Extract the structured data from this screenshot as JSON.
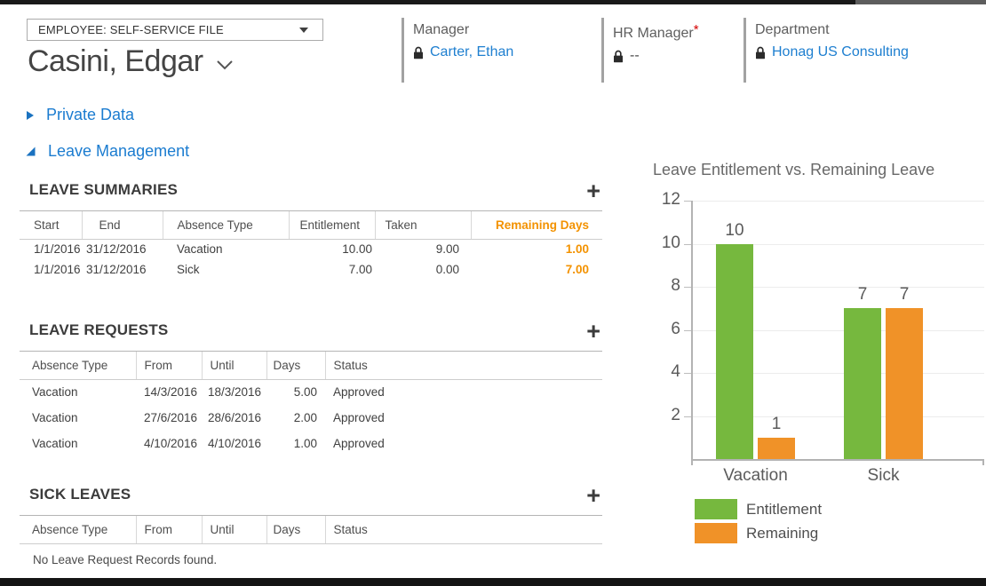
{
  "header": {
    "context_selector": "EMPLOYEE: SELF-SERVICE FILE",
    "employee_name": "Casini, Edgar",
    "fields": [
      {
        "label": "Manager",
        "value": "Carter, Ethan"
      },
      {
        "label": "HR Manager",
        "required_mark": "*",
        "value": "--"
      },
      {
        "label": "Department",
        "value": "Honag US Consulting"
      }
    ]
  },
  "sections": {
    "private_data": {
      "label": "Private Data",
      "expanded": false
    },
    "leave_management": {
      "label": "Leave Management",
      "expanded": true
    }
  },
  "leave_summaries": {
    "title": "LEAVE SUMMARIES",
    "add_label": "+",
    "columns": [
      "Start",
      "End",
      "Absence Type",
      "Entitlement",
      "Taken",
      "Remaining Days"
    ],
    "rows": [
      {
        "start": "1/1/2016",
        "end": "31/12/2016",
        "absence_type": "Vacation",
        "entitlement": "10.00",
        "taken": "9.00",
        "remaining": "1.00"
      },
      {
        "start": "1/1/2016",
        "end": "31/12/2016",
        "absence_type": "Sick",
        "entitlement": "7.00",
        "taken": "0.00",
        "remaining": "7.00"
      }
    ]
  },
  "leave_requests": {
    "title": "LEAVE REQUESTS",
    "add_label": "+",
    "columns": [
      "Absence Type",
      "From",
      "Until",
      "Days",
      "Status"
    ],
    "rows": [
      {
        "absence_type": "Vacation",
        "from": "14/3/2016",
        "until": "18/3/2016",
        "days": "5.00",
        "status": "Approved"
      },
      {
        "absence_type": "Vacation",
        "from": "27/6/2016",
        "until": "28/6/2016",
        "days": "2.00",
        "status": "Approved"
      },
      {
        "absence_type": "Vacation",
        "from": "4/10/2016",
        "until": "4/10/2016",
        "days": "1.00",
        "status": "Approved"
      }
    ]
  },
  "sick_leaves": {
    "title": "SICK LEAVES",
    "add_label": "+",
    "columns": [
      "Absence Type",
      "From",
      "Until",
      "Days",
      "Status"
    ],
    "empty_message": "No Leave Request Records found."
  },
  "colors": {
    "link_blue": "#1E7FD0",
    "green": "#76B83E",
    "orange": "#F09228",
    "remaining_text_orange": "#F39200",
    "required_red": "#D40000"
  },
  "chart_data": {
    "type": "bar",
    "title": "Leave Entitlement vs. Remaining Leave",
    "categories": [
      "Vacation",
      "Sick"
    ],
    "series": [
      {
        "name": "Entitlement",
        "color": "#76B83E",
        "values": [
          10,
          7
        ]
      },
      {
        "name": "Remaining",
        "color": "#F09228",
        "values": [
          1,
          7
        ]
      }
    ],
    "ylim": [
      0,
      12
    ],
    "ytick_step": 2,
    "grid": true,
    "bar_labels": true,
    "legend_position": "bottom-left"
  }
}
